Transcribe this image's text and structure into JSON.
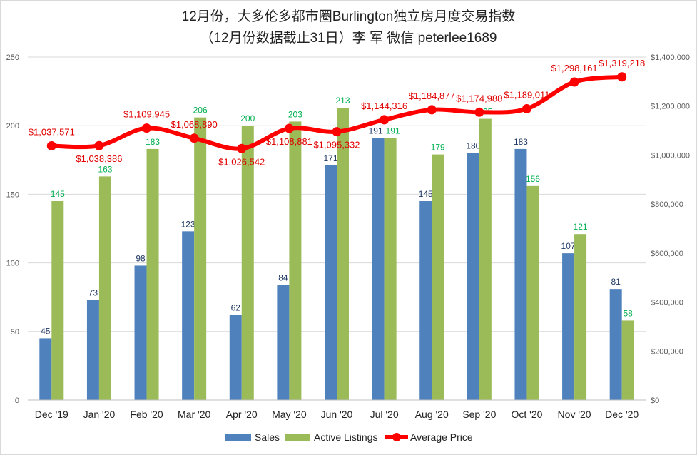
{
  "chart_data": {
    "type": "bar+line",
    "title": "12月份，大多伦多都市圈Burlington独立房月度交易指数",
    "subtitle": "（12月份数据截止31日）李 军  微信  peterlee1689",
    "categories": [
      "Dec '19",
      "Jan '20",
      "Feb '20",
      "Mar '20",
      "Apr '20",
      "May '20",
      "Jun '20",
      "Jul '20",
      "Aug '20",
      "Sep '20",
      "Oct '20",
      "Nov '20",
      "Dec '20"
    ],
    "series": [
      {
        "name": "Sales",
        "type": "bar",
        "axis": "left",
        "color": "#4f81bd",
        "label_color": "#1f3864",
        "values": [
          45,
          73,
          98,
          123,
          62,
          84,
          171,
          191,
          145,
          180,
          183,
          107,
          81
        ]
      },
      {
        "name": "Active Listings",
        "type": "bar",
        "axis": "left",
        "color": "#9bbb59",
        "label_color": "#00b050",
        "values": [
          145,
          163,
          183,
          206,
          200,
          203,
          213,
          191,
          179,
          205,
          156,
          121,
          58
        ]
      },
      {
        "name": "Average Price",
        "type": "line",
        "axis": "right",
        "color": "#ff0000",
        "label_color": "#e00000",
        "values": [
          1037571,
          1038386,
          1109945,
          1068890,
          1026542,
          1108881,
          1095332,
          1144316,
          1184877,
          1174988,
          1189011,
          1298161,
          1319218
        ],
        "labels": [
          "$1,037,571",
          "$1,038,386",
          "$1,109,945",
          "$1,068,890",
          "$1,026,542",
          "$1,108,881",
          "$1,095,332",
          "$1,144,316",
          "$1,184,877",
          "$1,174,988",
          "$1,189,011",
          "$1,298,161",
          "$1,319,218"
        ]
      }
    ],
    "ylim_left": [
      0,
      250
    ],
    "yticks_left": [
      "0",
      "50",
      "100",
      "150",
      "200",
      "250"
    ],
    "ylim_right": [
      0,
      1400000
    ],
    "yticks_right": [
      "$0",
      "$200,000",
      "$400,000",
      "$600,000",
      "$800,000",
      "$1,000,000",
      "$1,200,000",
      "$1,400,000"
    ],
    "grid": true,
    "legend": "bottom"
  }
}
